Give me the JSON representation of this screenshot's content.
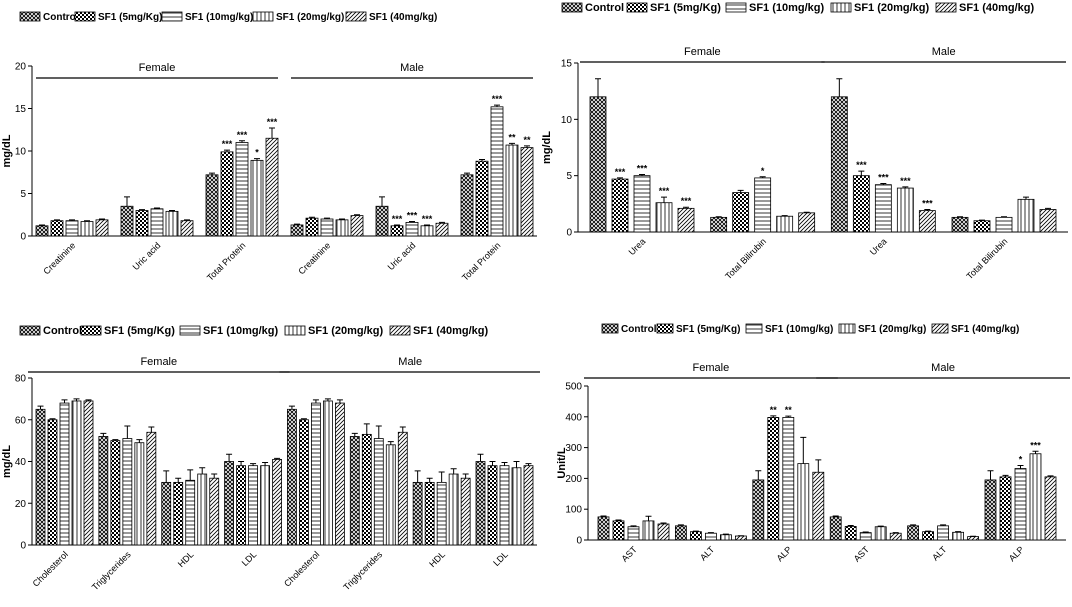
{
  "figure": {
    "patterns": {
      "Control": "cross-diagonal",
      "SF1 (5mg/Kg)": "checker",
      "SF1 (10mg/kg)": "horizontal-stripes",
      "SF1 (20mg/kg)": "vertical-stripes",
      "SF1 (40mg/kg)": "diagonal-stripes"
    },
    "colors": {
      "ink": "#000000",
      "bar_fill": "#ffffff",
      "background": "#ffffff"
    }
  },
  "chart_data": [
    {
      "id": "A",
      "type": "bar",
      "ylabel": "mg/dL",
      "ylim": [
        0,
        20
      ],
      "yticks": [
        0,
        5,
        10,
        15,
        20
      ],
      "legend": [
        "Contro",
        "SF1 (5mg/Kg)",
        "SF1 (10mg/kg)",
        "SF1 (20mg/kg)",
        "SF1 (40mg/kg)"
      ],
      "groups": [
        {
          "name": "Female",
          "categories": [
            {
              "label": "Creatinine",
              "values": [
                1.2,
                1.8,
                1.8,
                1.7,
                1.9
              ],
              "errors": [
                0.1,
                0.1,
                0.1,
                0.1,
                0.1
              ],
              "sig": [
                "",
                "",
                "",
                "",
                ""
              ]
            },
            {
              "label": "Uric acid",
              "values": [
                3.5,
                3.0,
                3.2,
                2.9,
                1.8
              ],
              "errors": [
                1.1,
                0.1,
                0.1,
                0.1,
                0.1
              ],
              "sig": [
                "",
                "",
                "",
                "",
                ""
              ]
            },
            {
              "label": "Total Protein",
              "values": [
                7.2,
                9.9,
                11.0,
                8.9,
                11.5
              ],
              "errors": [
                0.2,
                0.2,
                0.2,
                0.2,
                1.2
              ],
              "sig": [
                "",
                "***",
                "***",
                "*",
                "***"
              ]
            }
          ]
        },
        {
          "name": "Male",
          "categories": [
            {
              "label": "Creatinine",
              "values": [
                1.3,
                2.1,
                2.0,
                1.9,
                2.4
              ],
              "errors": [
                0.1,
                0.1,
                0.1,
                0.1,
                0.1
              ],
              "sig": [
                "",
                "",
                "",
                "",
                ""
              ]
            },
            {
              "label": "Uric acid",
              "values": [
                3.5,
                1.2,
                1.6,
                1.2,
                1.5
              ],
              "errors": [
                1.1,
                0.1,
                0.1,
                0.1,
                0.1
              ],
              "sig": [
                "",
                "***",
                "***",
                "***",
                ""
              ]
            },
            {
              "label": "Total Protein",
              "values": [
                7.2,
                8.8,
                15.2,
                10.7,
                10.4
              ],
              "errors": [
                0.2,
                0.2,
                0.2,
                0.2,
                0.2
              ],
              "sig": [
                "",
                "",
                "***",
                "**",
                "**"
              ]
            }
          ]
        }
      ]
    },
    {
      "id": "B",
      "type": "bar",
      "ylabel": "mg/dL",
      "ylim": [
        0,
        15
      ],
      "yticks": [
        0,
        5,
        10,
        15
      ],
      "legend": [
        "Control",
        "SF1 (5mg/Kg)",
        "SF1 (10mg/kg)",
        "SF1 (20mg/kg)",
        "SF1 (40mg/kg)"
      ],
      "groups": [
        {
          "name": "Female",
          "categories": [
            {
              "label": "Urea",
              "values": [
                12.0,
                4.7,
                5.0,
                2.6,
                2.1
              ],
              "errors": [
                1.6,
                0.1,
                0.1,
                0.5,
                0.1
              ],
              "sig": [
                "",
                "***",
                "***",
                "***",
                "***"
              ]
            },
            {
              "label": "Total Bilirubin",
              "values": [
                1.3,
                3.5,
                4.8,
                1.4,
                1.7
              ],
              "errors": [
                0.05,
                0.2,
                0.1,
                0.05,
                0.05
              ],
              "sig": [
                "",
                "",
                "*",
                "",
                ""
              ]
            }
          ]
        },
        {
          "name": "Male",
          "categories": [
            {
              "label": "Urea",
              "values": [
                12.0,
                5.0,
                4.2,
                3.9,
                1.9
              ],
              "errors": [
                1.6,
                0.4,
                0.1,
                0.1,
                0.1
              ],
              "sig": [
                "",
                "***",
                "***",
                "***",
                "***"
              ]
            },
            {
              "label": "Total Bilirubin",
              "values": [
                1.3,
                1.0,
                1.3,
                2.9,
                2.0
              ],
              "errors": [
                0.05,
                0.05,
                0.05,
                0.2,
                0.1
              ],
              "sig": [
                "",
                "",
                "",
                "",
                ""
              ]
            }
          ]
        }
      ]
    },
    {
      "id": "C",
      "type": "bar",
      "ylabel": "mg/dL",
      "ylim": [
        0,
        80
      ],
      "yticks": [
        0,
        20,
        40,
        60,
        80
      ],
      "legend": [
        "Control",
        "SF1 (5mg/Kg)",
        "SF1 (10mg/kg)",
        "SF1 (20mg/kg)",
        "SF1 (40mg/kg)"
      ],
      "groups": [
        {
          "name": "Female",
          "categories": [
            {
              "label": "Cholesterol",
              "values": [
                65,
                60,
                68,
                69,
                69
              ],
              "errors": [
                1.5,
                0.5,
                1.5,
                1,
                0.5
              ],
              "sig": [
                "",
                "",
                "",
                "",
                ""
              ]
            },
            {
              "label": "Triglycerides",
              "values": [
                52,
                50,
                51,
                49,
                54
              ],
              "errors": [
                1.5,
                0.5,
                6,
                1.5,
                2.5
              ],
              "sig": [
                "",
                "",
                "",
                "",
                ""
              ]
            },
            {
              "label": "HDL",
              "values": [
                30,
                30,
                31,
                34,
                32
              ],
              "errors": [
                5.5,
                2,
                5,
                3,
                2
              ],
              "sig": [
                "",
                "",
                "",
                "",
                ""
              ]
            },
            {
              "label": "LDL",
              "values": [
                40,
                38,
                38,
                38,
                41
              ],
              "errors": [
                3.5,
                2,
                1,
                1.5,
                0.5
              ],
              "sig": [
                "",
                "",
                "",
                "",
                ""
              ]
            }
          ]
        },
        {
          "name": "Male",
          "categories": [
            {
              "label": "Cholesterol",
              "values": [
                65,
                60,
                68,
                69,
                68
              ],
              "errors": [
                1.5,
                0.5,
                1.5,
                1,
                1.5
              ],
              "sig": [
                "",
                "",
                "",
                "",
                ""
              ]
            },
            {
              "label": "Triglycerides",
              "values": [
                52,
                53,
                51,
                48,
                54
              ],
              "errors": [
                1.5,
                5,
                6,
                1.5,
                2.5
              ],
              "sig": [
                "",
                "",
                "",
                "",
                ""
              ]
            },
            {
              "label": "HDL",
              "values": [
                30,
                30,
                30,
                34,
                32
              ],
              "errors": [
                5.5,
                2,
                5,
                2.5,
                2
              ],
              "sig": [
                "",
                "",
                "",
                "",
                ""
              ]
            },
            {
              "label": "LDL",
              "values": [
                40,
                38,
                38,
                37,
                38
              ],
              "errors": [
                3.5,
                2,
                1.5,
                3,
                1
              ],
              "sig": [
                "",
                "",
                "",
                "",
                ""
              ]
            }
          ]
        }
      ]
    },
    {
      "id": "D",
      "type": "bar",
      "ylabel": "Unit/L",
      "ylim": [
        0,
        500
      ],
      "yticks": [
        0,
        100,
        200,
        300,
        400,
        500
      ],
      "legend": [
        "Control",
        "SF1 (5mg/Kg)",
        "SF1 (10mg/kg)",
        "SF1 (20mg/kg)",
        "SF1 (40mg/kg)"
      ],
      "groups": [
        {
          "name": "Female",
          "categories": [
            {
              "label": "AST",
              "values": [
                75,
                62,
                43,
                62,
                52
              ],
              "errors": [
                3,
                3,
                3,
                15,
                3
              ],
              "sig": [
                "",
                "",
                "",
                "",
                ""
              ]
            },
            {
              "label": "ALT",
              "values": [
                46,
                27,
                22,
                17,
                13
              ],
              "errors": [
                3,
                2,
                2,
                2,
                1
              ],
              "sig": [
                "",
                "",
                "",
                "",
                ""
              ]
            },
            {
              "label": "ALP",
              "values": [
                195,
                398,
                398,
                248,
                220
              ],
              "errors": [
                30,
                5,
                4,
                85,
                40
              ],
              "sig": [
                "",
                "**",
                "**",
                "",
                ""
              ]
            }
          ]
        },
        {
          "name": "Male",
          "categories": [
            {
              "label": "AST",
              "values": [
                75,
                44,
                24,
                43,
                22
              ],
              "errors": [
                3,
                3,
                2,
                2,
                2
              ],
              "sig": [
                "",
                "",
                "",
                "",
                ""
              ]
            },
            {
              "label": "ALT",
              "values": [
                46,
                27,
                46,
                25,
                11
              ],
              "errors": [
                3,
                2,
                3,
                2,
                1
              ],
              "sig": [
                "",
                "",
                "",
                "",
                ""
              ]
            },
            {
              "label": "ALP",
              "values": [
                195,
                205,
                232,
                280,
                205
              ],
              "errors": [
                30,
                5,
                10,
                8,
                3
              ],
              "sig": [
                "",
                "",
                "*",
                "***",
                ""
              ]
            }
          ]
        }
      ]
    }
  ]
}
